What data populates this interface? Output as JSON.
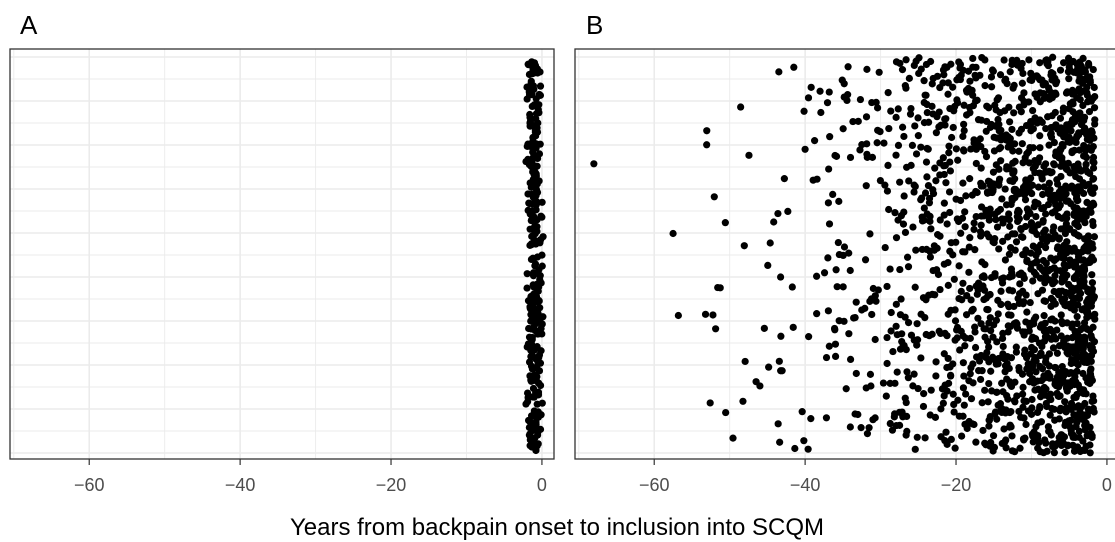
{
  "chart_data": [
    {
      "type": "scatter",
      "panel": "A",
      "xlabel": "Years from backpain onset to inclusion into SCQM",
      "xlim": [
        -70.5,
        1.6
      ],
      "xticks": [
        -60,
        -40,
        -20,
        0
      ],
      "xtick_labels": [
        "−60",
        "−40",
        "−20",
        "0"
      ],
      "ylabel": "",
      "y_ticks_shown": false,
      "grid": true,
      "n_points": 300,
      "x_range_of_points": [
        -2.2,
        0.3
      ],
      "note_points": "jittered strip concentrated at x ≈ −1"
    },
    {
      "type": "scatter",
      "panel": "B",
      "xlabel": "Years from backpain onset to inclusion into SCQM",
      "xlim": [
        -70.5,
        1.6
      ],
      "xticks": [
        -60,
        -40,
        -20,
        0
      ],
      "xtick_labels": [
        "−60",
        "−40",
        "−20",
        "0"
      ],
      "ylabel": "",
      "y_ticks_shown": false,
      "grid": true,
      "n_points": 1800,
      "x_range_of_points": [
        -68,
        -1.5
      ],
      "outliers": [
        {
          "x": -68.0,
          "y": 0.72
        },
        {
          "x": -57.5,
          "y": 0.55
        },
        {
          "x": -56.8,
          "y": 0.35
        }
      ]
    }
  ]
}
